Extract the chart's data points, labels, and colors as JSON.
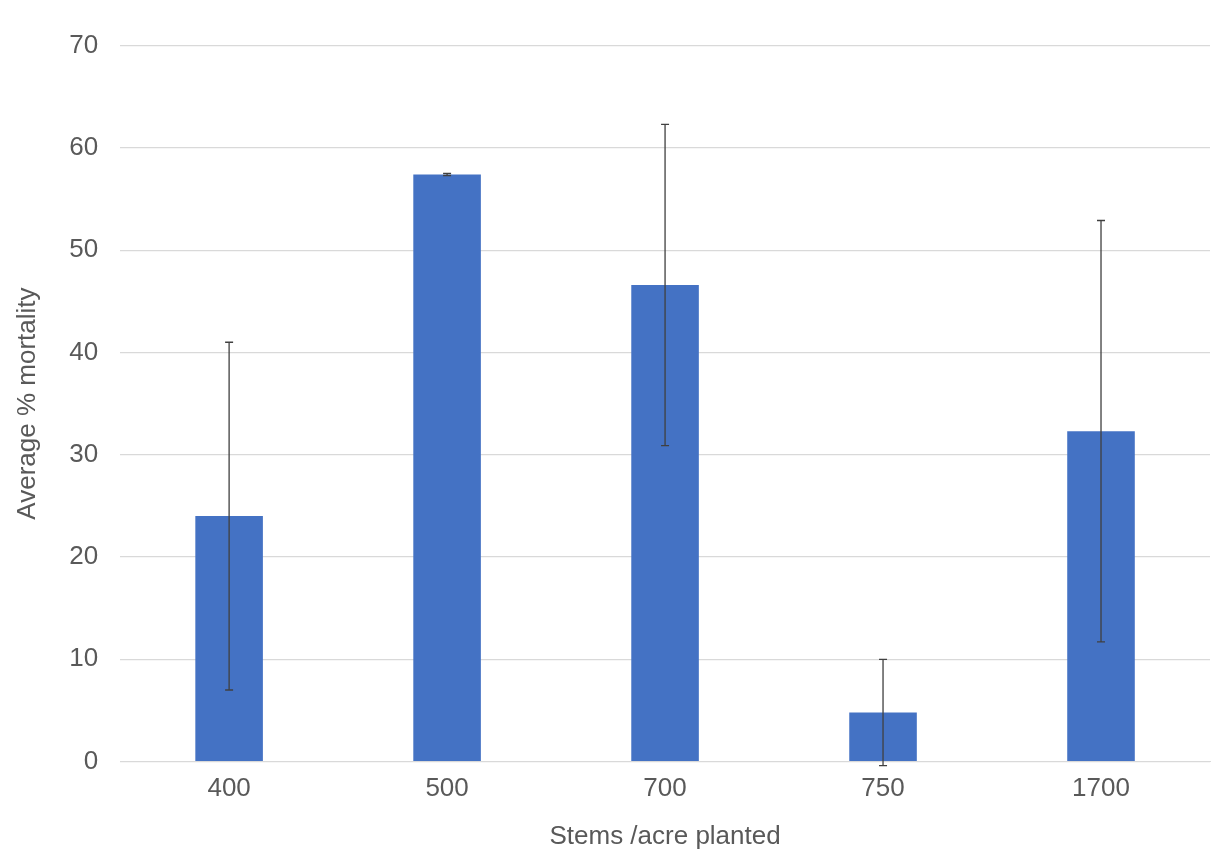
{
  "chart_data": {
    "type": "bar",
    "xlabel": "Stems /acre planted",
    "ylabel": "Average % mortality",
    "categories": [
      "400",
      "500",
      "700",
      "750",
      "1700"
    ],
    "values": [
      24.0,
      57.4,
      46.6,
      4.8,
      32.3
    ],
    "errors": [
      17.0,
      0.1,
      15.7,
      5.2,
      20.6
    ],
    "color": "#4472c4",
    "ylim": [
      0,
      70
    ],
    "yticks": [
      0,
      10,
      20,
      30,
      40,
      50,
      60,
      70
    ],
    "grid": "y",
    "legend": false
  }
}
